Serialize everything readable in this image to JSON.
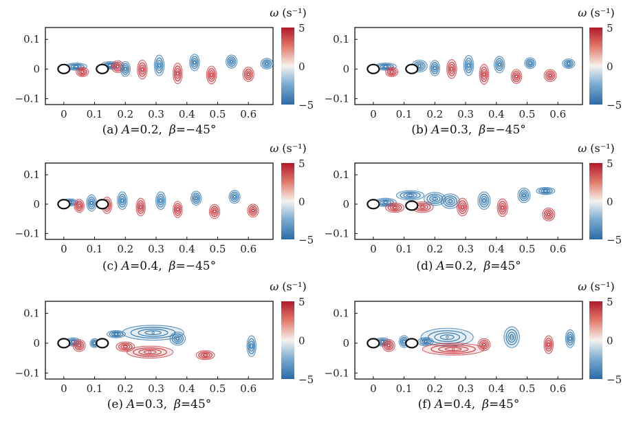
{
  "chart_data": [
    {
      "type": "contour",
      "id": "a",
      "label": "(a)",
      "param_a": "0.2",
      "param_beta": "−45°",
      "xlim": [
        -0.06,
        0.68
      ],
      "ylim": [
        -0.12,
        0.14
      ],
      "xticks": [
        {
          "v": 0,
          "t": "0"
        },
        {
          "v": 0.1,
          "t": "0.1"
        },
        {
          "v": 0.2,
          "t": "0.2"
        },
        {
          "v": 0.3,
          "t": "0.3"
        },
        {
          "v": 0.4,
          "t": "0.4"
        },
        {
          "v": 0.5,
          "t": "0.5"
        },
        {
          "v": 0.6,
          "t": "0.6"
        }
      ],
      "yticks": [
        {
          "v": 0.1,
          "t": "0.1"
        },
        {
          "v": 0,
          "t": "0"
        },
        {
          "v": -0.1,
          "t": "−0.1"
        }
      ],
      "cylinders": [
        {
          "x": 0,
          "y": 0
        },
        {
          "x": 0.125,
          "y": 0
        }
      ],
      "vortices": [
        {
          "x": 0.04,
          "y": 0.008,
          "rx": 0.035,
          "ry": 0.012,
          "s": -1
        },
        {
          "x": 0.06,
          "y": -0.01,
          "rx": 0.02,
          "ry": 0.016,
          "s": 1
        },
        {
          "x": 0.15,
          "y": 0.012,
          "rx": 0.03,
          "ry": 0.013,
          "s": -1
        },
        {
          "x": 0.175,
          "y": 0.008,
          "rx": 0.02,
          "ry": 0.02,
          "s": 1
        },
        {
          "x": 0.2,
          "y": 0.0,
          "rx": 0.016,
          "ry": 0.025,
          "s": -1
        },
        {
          "x": 0.255,
          "y": -0.002,
          "rx": 0.016,
          "ry": 0.032,
          "s": 1
        },
        {
          "x": 0.31,
          "y": 0.012,
          "rx": 0.016,
          "ry": 0.035,
          "s": -1
        },
        {
          "x": 0.37,
          "y": -0.015,
          "rx": 0.015,
          "ry": 0.035,
          "s": 1
        },
        {
          "x": 0.425,
          "y": 0.022,
          "rx": 0.016,
          "ry": 0.028,
          "s": -1
        },
        {
          "x": 0.48,
          "y": -0.02,
          "rx": 0.016,
          "ry": 0.03,
          "s": 1
        },
        {
          "x": 0.545,
          "y": 0.025,
          "rx": 0.018,
          "ry": 0.022,
          "s": -1
        },
        {
          "x": 0.6,
          "y": -0.018,
          "rx": 0.018,
          "ry": 0.024,
          "s": 1
        },
        {
          "x": 0.66,
          "y": 0.018,
          "rx": 0.02,
          "ry": 0.018,
          "s": -1
        }
      ],
      "colorbar": {
        "min": -5,
        "max": 5,
        "ticks": [
          "5",
          "0",
          "−5"
        ],
        "label": "ω",
        "unit": "(s⁻¹)"
      }
    },
    {
      "type": "contour",
      "id": "b",
      "label": "(b)",
      "param_a": "0.3",
      "param_beta": "−45°",
      "xlim": [
        -0.06,
        0.68
      ],
      "ylim": [
        -0.12,
        0.14
      ],
      "xticks": [
        {
          "v": 0,
          "t": "0"
        },
        {
          "v": 0.1,
          "t": "0.1"
        },
        {
          "v": 0.2,
          "t": "0.2"
        },
        {
          "v": 0.3,
          "t": "0.3"
        },
        {
          "v": 0.4,
          "t": "0.4"
        },
        {
          "v": 0.5,
          "t": "0.5"
        },
        {
          "v": 0.6,
          "t": "0.6"
        }
      ],
      "yticks": [
        {
          "v": 0.1,
          "t": "0.1"
        },
        {
          "v": 0,
          "t": "0"
        },
        {
          "v": -0.1,
          "t": "−0.1"
        }
      ],
      "cylinders": [
        {
          "x": 0,
          "y": 0
        },
        {
          "x": 0.125,
          "y": 0
        }
      ],
      "vortices": [
        {
          "x": 0.04,
          "y": 0.008,
          "rx": 0.035,
          "ry": 0.012,
          "s": -1
        },
        {
          "x": 0.06,
          "y": -0.01,
          "rx": 0.02,
          "ry": 0.016,
          "s": 1
        },
        {
          "x": 0.15,
          "y": 0.01,
          "rx": 0.025,
          "ry": 0.02,
          "s": -1
        },
        {
          "x": 0.2,
          "y": 0.003,
          "rx": 0.016,
          "ry": 0.026,
          "s": -1
        },
        {
          "x": 0.255,
          "y": 0.0,
          "rx": 0.016,
          "ry": 0.032,
          "s": 1
        },
        {
          "x": 0.31,
          "y": 0.012,
          "rx": 0.016,
          "ry": 0.034,
          "s": -1
        },
        {
          "x": 0.36,
          "y": -0.018,
          "rx": 0.015,
          "ry": 0.034,
          "s": 1
        },
        {
          "x": 0.41,
          "y": 0.015,
          "rx": 0.017,
          "ry": 0.028,
          "s": -1
        },
        {
          "x": 0.465,
          "y": -0.025,
          "rx": 0.017,
          "ry": 0.024,
          "s": 1
        },
        {
          "x": 0.51,
          "y": 0.02,
          "rx": 0.018,
          "ry": 0.018,
          "s": -1
        },
        {
          "x": 0.575,
          "y": -0.022,
          "rx": 0.02,
          "ry": 0.02,
          "s": 1
        },
        {
          "x": 0.635,
          "y": 0.018,
          "rx": 0.02,
          "ry": 0.016,
          "s": -1
        }
      ],
      "colorbar": {
        "min": -5,
        "max": 5,
        "ticks": [
          "5",
          "0",
          "−5"
        ],
        "label": "ω",
        "unit": "(s⁻¹)"
      }
    },
    {
      "type": "contour",
      "id": "c",
      "label": "(c)",
      "param_a": "0.4",
      "param_beta": "−45°",
      "xlim": [
        -0.06,
        0.68
      ],
      "ylim": [
        -0.12,
        0.14
      ],
      "xticks": [
        {
          "v": 0,
          "t": "0"
        },
        {
          "v": 0.1,
          "t": "0.1"
        },
        {
          "v": 0.2,
          "t": "0.2"
        },
        {
          "v": 0.3,
          "t": "0.3"
        },
        {
          "v": 0.4,
          "t": "0.4"
        },
        {
          "v": 0.5,
          "t": "0.5"
        },
        {
          "v": 0.6,
          "t": "0.6"
        }
      ],
      "yticks": [
        {
          "v": 0.1,
          "t": "0.1"
        },
        {
          "v": 0,
          "t": "0"
        },
        {
          "v": -0.1,
          "t": "−0.1"
        }
      ],
      "cylinders": [
        {
          "x": 0,
          "y": 0
        },
        {
          "x": 0.125,
          "y": 0
        }
      ],
      "vortices": [
        {
          "x": 0.02,
          "y": 0.006,
          "rx": 0.025,
          "ry": 0.012,
          "s": -1
        },
        {
          "x": 0.05,
          "y": -0.006,
          "rx": 0.016,
          "ry": 0.022,
          "s": 1
        },
        {
          "x": 0.09,
          "y": 0.004,
          "rx": 0.016,
          "ry": 0.028,
          "s": -1
        },
        {
          "x": 0.14,
          "y": -0.004,
          "rx": 0.016,
          "ry": 0.028,
          "s": 1
        },
        {
          "x": 0.19,
          "y": 0.012,
          "rx": 0.016,
          "ry": 0.03,
          "s": -1
        },
        {
          "x": 0.25,
          "y": -0.01,
          "rx": 0.015,
          "ry": 0.03,
          "s": 1
        },
        {
          "x": 0.315,
          "y": 0.012,
          "rx": 0.016,
          "ry": 0.03,
          "s": -1
        },
        {
          "x": 0.37,
          "y": -0.018,
          "rx": 0.015,
          "ry": 0.028,
          "s": 1
        },
        {
          "x": 0.43,
          "y": 0.02,
          "rx": 0.017,
          "ry": 0.024,
          "s": -1
        },
        {
          "x": 0.49,
          "y": -0.025,
          "rx": 0.017,
          "ry": 0.024,
          "s": 1
        },
        {
          "x": 0.555,
          "y": 0.025,
          "rx": 0.018,
          "ry": 0.022,
          "s": -1
        },
        {
          "x": 0.615,
          "y": -0.022,
          "rx": 0.018,
          "ry": 0.022,
          "s": 1
        }
      ],
      "colorbar": {
        "min": -5,
        "max": 5,
        "ticks": [
          "5",
          "0",
          "−5"
        ],
        "label": "ω",
        "unit": "(s⁻¹)"
      }
    },
    {
      "type": "contour",
      "id": "d",
      "label": "(d)",
      "param_a": "0.2",
      "param_beta": "45°",
      "xlim": [
        -0.06,
        0.68
      ],
      "ylim": [
        -0.12,
        0.14
      ],
      "xticks": [
        {
          "v": 0,
          "t": "0"
        },
        {
          "v": 0.1,
          "t": "0.1"
        },
        {
          "v": 0.2,
          "t": "0.2"
        },
        {
          "v": 0.3,
          "t": "0.3"
        },
        {
          "v": 0.4,
          "t": "0.4"
        },
        {
          "v": 0.5,
          "t": "0.5"
        },
        {
          "v": 0.6,
          "t": "0.6"
        }
      ],
      "yticks": [
        {
          "v": 0.1,
          "t": "0.1"
        },
        {
          "v": 0,
          "t": "0"
        },
        {
          "v": -0.1,
          "t": "−0.1"
        }
      ],
      "cylinders": [
        {
          "x": 0,
          "y": 0
        },
        {
          "x": 0.125,
          "y": -0.005
        }
      ],
      "vortices": [
        {
          "x": 0.04,
          "y": 0.006,
          "rx": 0.035,
          "ry": 0.014,
          "s": -1
        },
        {
          "x": 0.07,
          "y": -0.012,
          "rx": 0.03,
          "ry": 0.016,
          "s": 1
        },
        {
          "x": 0.12,
          "y": 0.03,
          "rx": 0.045,
          "ry": 0.016,
          "s": -1
        },
        {
          "x": 0.16,
          "y": -0.01,
          "rx": 0.035,
          "ry": 0.018,
          "s": 1
        },
        {
          "x": 0.2,
          "y": 0.018,
          "rx": 0.035,
          "ry": 0.022,
          "s": -1
        },
        {
          "x": 0.25,
          "y": 0.01,
          "rx": 0.03,
          "ry": 0.025,
          "s": -1
        },
        {
          "x": 0.29,
          "y": -0.01,
          "rx": 0.018,
          "ry": 0.03,
          "s": 1
        },
        {
          "x": 0.36,
          "y": 0.012,
          "rx": 0.02,
          "ry": 0.03,
          "s": -1
        },
        {
          "x": 0.42,
          "y": -0.012,
          "rx": 0.017,
          "ry": 0.03,
          "s": 1
        },
        {
          "x": 0.49,
          "y": 0.03,
          "rx": 0.02,
          "ry": 0.025,
          "s": -1
        },
        {
          "x": 0.56,
          "y": 0.045,
          "rx": 0.03,
          "ry": 0.012,
          "s": -1
        },
        {
          "x": 0.57,
          "y": -0.035,
          "rx": 0.02,
          "ry": 0.022,
          "s": 1
        }
      ],
      "colorbar": {
        "min": -5,
        "max": 5,
        "ticks": [
          "5",
          "0",
          "−5"
        ],
        "label": "ω",
        "unit": "(s⁻¹)"
      }
    },
    {
      "type": "contour",
      "id": "e",
      "label": "(e)",
      "param_a": "0.3",
      "param_beta": "45°",
      "xlim": [
        -0.06,
        0.68
      ],
      "ylim": [
        -0.12,
        0.14
      ],
      "xticks": [
        {
          "v": 0,
          "t": "0"
        },
        {
          "v": 0.1,
          "t": "0.1"
        },
        {
          "v": 0.2,
          "t": "0.2"
        },
        {
          "v": 0.3,
          "t": "0.3"
        },
        {
          "v": 0.4,
          "t": "0.4"
        },
        {
          "v": 0.5,
          "t": "0.5"
        },
        {
          "v": 0.6,
          "t": "0.6"
        }
      ],
      "yticks": [
        {
          "v": 0.1,
          "t": "0.1"
        },
        {
          "v": 0,
          "t": "0"
        },
        {
          "v": -0.1,
          "t": "−0.1"
        }
      ],
      "cylinders": [
        {
          "x": 0,
          "y": 0
        },
        {
          "x": 0.125,
          "y": 0
        }
      ],
      "vortices": [
        {
          "x": 0.03,
          "y": 0.004,
          "rx": 0.025,
          "ry": 0.014,
          "s": -1
        },
        {
          "x": 0.05,
          "y": -0.008,
          "rx": 0.02,
          "ry": 0.02,
          "s": 1
        },
        {
          "x": 0.1,
          "y": 0.0,
          "rx": 0.015,
          "ry": 0.015,
          "s": -1
        },
        {
          "x": 0.17,
          "y": 0.03,
          "rx": 0.03,
          "ry": 0.012,
          "s": -1
        },
        {
          "x": 0.2,
          "y": -0.012,
          "rx": 0.03,
          "ry": 0.016,
          "s": 1
        },
        {
          "x": 0.29,
          "y": 0.035,
          "rx": 0.1,
          "ry": 0.025,
          "s": -1
        },
        {
          "x": 0.28,
          "y": -0.03,
          "rx": 0.075,
          "ry": 0.02,
          "s": 1
        },
        {
          "x": 0.37,
          "y": 0.015,
          "rx": 0.025,
          "ry": 0.022,
          "s": -1
        },
        {
          "x": 0.46,
          "y": -0.04,
          "rx": 0.03,
          "ry": 0.015,
          "s": 1
        },
        {
          "x": 0.61,
          "y": -0.01,
          "rx": 0.015,
          "ry": 0.035,
          "s": -1
        }
      ],
      "colorbar": {
        "min": -5,
        "max": 5,
        "ticks": [
          "5",
          "0",
          "−5"
        ],
        "label": "ω",
        "unit": "(s⁻¹)"
      }
    },
    {
      "type": "contour",
      "id": "f",
      "label": "(f)",
      "param_a": "0.4",
      "param_beta": "45°",
      "xlim": [
        -0.06,
        0.68
      ],
      "ylim": [
        -0.12,
        0.14
      ],
      "xticks": [
        {
          "v": 0,
          "t": "0"
        },
        {
          "v": 0.1,
          "t": "0.1"
        },
        {
          "v": 0.2,
          "t": "0.2"
        },
        {
          "v": 0.3,
          "t": "0.3"
        },
        {
          "v": 0.4,
          "t": "0.4"
        },
        {
          "v": 0.5,
          "t": "0.5"
        },
        {
          "v": 0.6,
          "t": "0.6"
        }
      ],
      "yticks": [
        {
          "v": 0.1,
          "t": "0.1"
        },
        {
          "v": 0,
          "t": "0"
        },
        {
          "v": -0.1,
          "t": "−0.1"
        }
      ],
      "cylinders": [
        {
          "x": 0,
          "y": 0
        },
        {
          "x": 0.125,
          "y": 0
        }
      ],
      "vortices": [
        {
          "x": 0.03,
          "y": 0.004,
          "rx": 0.025,
          "ry": 0.014,
          "s": -1
        },
        {
          "x": 0.05,
          "y": -0.008,
          "rx": 0.02,
          "ry": 0.02,
          "s": 1
        },
        {
          "x": 0.1,
          "y": 0.005,
          "rx": 0.016,
          "ry": 0.02,
          "s": -1
        },
        {
          "x": 0.17,
          "y": 0.005,
          "rx": 0.025,
          "ry": 0.014,
          "s": -1
        },
        {
          "x": 0.24,
          "y": 0.02,
          "rx": 0.085,
          "ry": 0.03,
          "s": -1
        },
        {
          "x": 0.26,
          "y": -0.02,
          "rx": 0.1,
          "ry": 0.02,
          "s": 1
        },
        {
          "x": 0.36,
          "y": -0.005,
          "rx": 0.02,
          "ry": 0.02,
          "s": 1
        },
        {
          "x": 0.45,
          "y": 0.02,
          "rx": 0.025,
          "ry": 0.035,
          "s": -1
        },
        {
          "x": 0.57,
          "y": -0.005,
          "rx": 0.015,
          "ry": 0.03,
          "s": 1
        },
        {
          "x": 0.64,
          "y": 0.015,
          "rx": 0.015,
          "ry": 0.03,
          "s": -1
        }
      ],
      "colorbar": {
        "min": -5,
        "max": 5,
        "ticks": [
          "5",
          "0",
          "−5"
        ],
        "label": "ω",
        "unit": "(s⁻¹)"
      }
    }
  ],
  "caption_var_a": "A",
  "caption_var_beta": "β",
  "colors": {
    "positive": "#c8333a",
    "negative": "#2e74ad",
    "mid": "#f4f1ef",
    "outline": "#111111"
  }
}
